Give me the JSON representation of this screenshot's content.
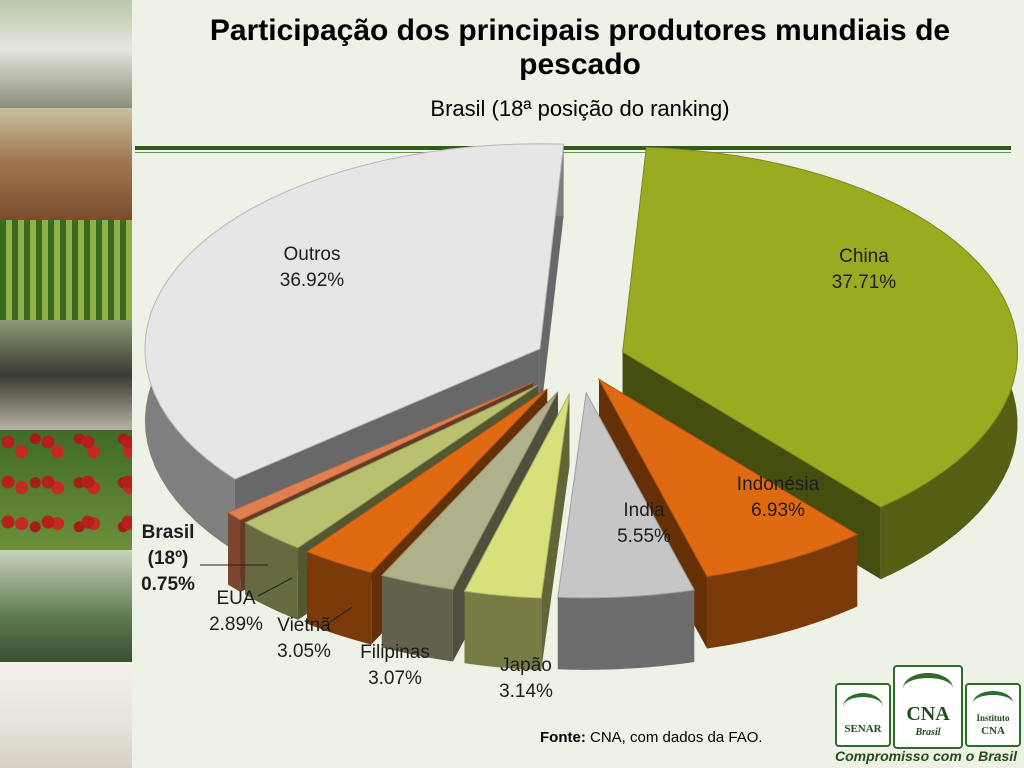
{
  "title": "Participação dos principais produtores mundiais de pescado",
  "subtitle": "Brasil (18ª posição do ranking)",
  "source_label": "Fonte:",
  "source_text": "CNA, com dados da FAO.",
  "logos": {
    "senar": "SENAR",
    "cna": "CNA",
    "cna_sub": "Brasil",
    "instituto": "Instituto",
    "instituto_cna": "CNA",
    "tagline": "Compromisso com o Brasil"
  },
  "colors": {
    "china": "#9aab22",
    "indonesia": "#e06a12",
    "india": "#c6c6c6",
    "japao": "#d8e07c",
    "filipinas": "#b0b08a",
    "vietna": "#e06a12",
    "eua": "#b9c170",
    "brasil": "#e08050",
    "outros": "#e6e6e6",
    "rule": "#2f5a1a"
  },
  "chart_data": {
    "type": "pie",
    "title": "Participação dos principais produtores mundiais de pescado",
    "subtitle": "Brasil (18ª posição do ranking)",
    "categories": [
      "China",
      "Indonésia",
      "India",
      "Japão",
      "Filipinas",
      "Vietnã",
      "EUA",
      "Brasil (18º)",
      "Outros"
    ],
    "values": [
      37.71,
      6.93,
      5.55,
      3.14,
      3.07,
      3.05,
      2.89,
      0.75,
      36.92
    ],
    "value_labels": [
      "37.71%",
      "6.93%",
      "5.55%",
      "3.14%",
      "3.07%",
      "3.05%",
      "2.89%",
      "0.75%",
      "36.92%"
    ],
    "label_lines": [
      [
        "China",
        "37.71%"
      ],
      [
        "Indonésia",
        "6.93%"
      ],
      [
        "India",
        "5.55%"
      ],
      [
        "Japão",
        "3.14%"
      ],
      [
        "Filipinas",
        "3.07%"
      ],
      [
        "Vietnã",
        "3.05%"
      ],
      [
        "EUA",
        "2.89%"
      ],
      [
        "Brasil",
        "(18º)",
        "0.75%"
      ],
      [
        "Outros",
        "36.92%"
      ]
    ],
    "style": "3D exploded pie",
    "legend": "none"
  }
}
